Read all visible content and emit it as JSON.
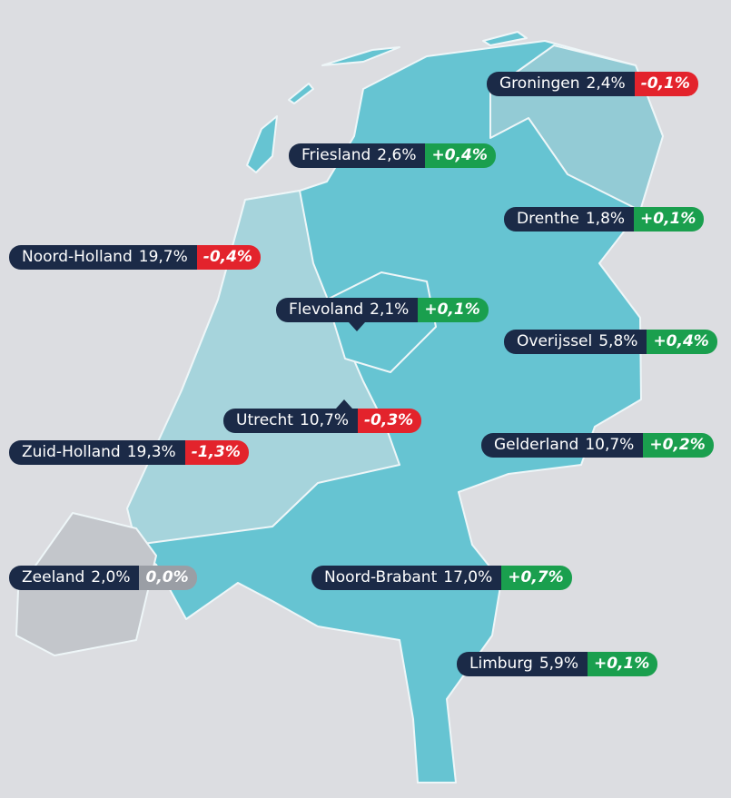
{
  "regions": [
    {
      "name": "Groningen",
      "share": "2,4%",
      "change": "-0,1%",
      "change_color": "#e3232c"
    },
    {
      "name": "Friesland",
      "share": "2,6%",
      "change": "+0,4%",
      "change_color": "#1a9f4e"
    },
    {
      "name": "Drenthe",
      "share": "1,8%",
      "change": "+0,1%",
      "change_color": "#1a9f4e"
    },
    {
      "name": "Noord-Holland",
      "share": "19,7%",
      "change": "-0,4%",
      "change_color": "#e3232c"
    },
    {
      "name": "Flevoland",
      "share": "2,1%",
      "change": "+0,1%",
      "change_color": "#1a9f4e"
    },
    {
      "name": "Overijssel",
      "share": "5,8%",
      "change": "+0,4%",
      "change_color": "#1a9f4e"
    },
    {
      "name": "Utrecht",
      "share": "10,7%",
      "change": "-0,3%",
      "change_color": "#e3232c"
    },
    {
      "name": "Zuid-Holland",
      "share": "19,3%",
      "change": "-1,3%",
      "change_color": "#e3232c"
    },
    {
      "name": "Gelderland",
      "share": "10,7%",
      "change": "+0,2%",
      "change_color": "#1a9f4e"
    },
    {
      "name": "Zeeland",
      "share": "2,0%",
      "change": "0,0%",
      "change_color": "#9a9ea5"
    },
    {
      "name": "Noord-Brabant",
      "share": "17,0%",
      "change": "+0,7%",
      "change_color": "#1a9f4e"
    },
    {
      "name": "Limburg",
      "share": "5,9%",
      "change": "+0,1%",
      "change_color": "#1a9f4e"
    }
  ]
}
